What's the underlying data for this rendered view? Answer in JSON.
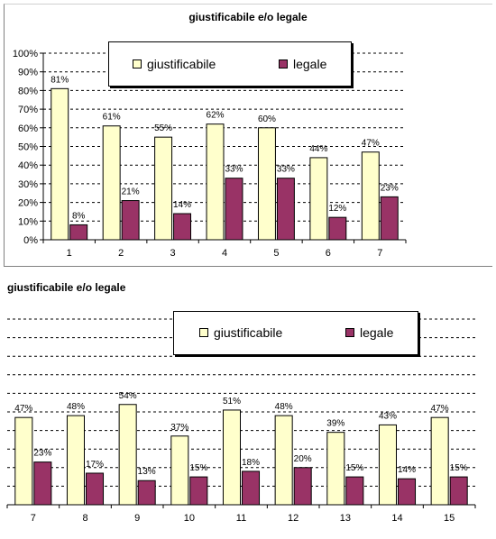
{
  "colors": {
    "giustificabile": "#ffffcc",
    "legale": "#993366",
    "grid": "#000000"
  },
  "legend": {
    "giustificabile": "giustificabile",
    "legale": "legale"
  },
  "chart_data": [
    {
      "type": "bar",
      "title": "giustificabile e/o legale",
      "categories": [
        "1",
        "2",
        "3",
        "4",
        "5",
        "6",
        "7"
      ],
      "ylim": [
        0,
        100
      ],
      "yticks": [
        "0%",
        "10%",
        "20%",
        "30%",
        "40%",
        "50%",
        "60%",
        "70%",
        "80%",
        "90%",
        "100%"
      ],
      "grid": true,
      "legend_position": "top",
      "series": [
        {
          "name": "giustificabile",
          "values": [
            81,
            61,
            55,
            62,
            60,
            44,
            47
          ],
          "labels": [
            "81%",
            "61%",
            "55%",
            "62%",
            "60%",
            "44%",
            "47%"
          ]
        },
        {
          "name": "legale",
          "values": [
            8,
            21,
            14,
            33,
            33,
            12,
            23
          ],
          "labels": [
            "8%",
            "21%",
            "14%",
            "33%",
            "33%",
            "12%",
            "23%"
          ]
        }
      ]
    },
    {
      "type": "bar",
      "title": "giustificabile e/o legale",
      "categories": [
        "7",
        "8",
        "9",
        "10",
        "11",
        "12",
        "13",
        "14",
        "15"
      ],
      "ylim": [
        0,
        100
      ],
      "grid": true,
      "legend_position": "top",
      "series": [
        {
          "name": "giustificabile",
          "values": [
            47,
            48,
            54,
            37,
            51,
            48,
            39,
            43,
            47
          ],
          "labels": [
            "47%",
            "48%",
            "54%",
            "37%",
            "51%",
            "48%",
            "39%",
            "43%",
            "47%"
          ]
        },
        {
          "name": "legale",
          "values": [
            23,
            17,
            13,
            15,
            18,
            20,
            15,
            14,
            15
          ],
          "labels": [
            "23%",
            "17%",
            "13%",
            "15%",
            "18%",
            "20%",
            "15%",
            "14%",
            "15%"
          ]
        }
      ]
    }
  ]
}
